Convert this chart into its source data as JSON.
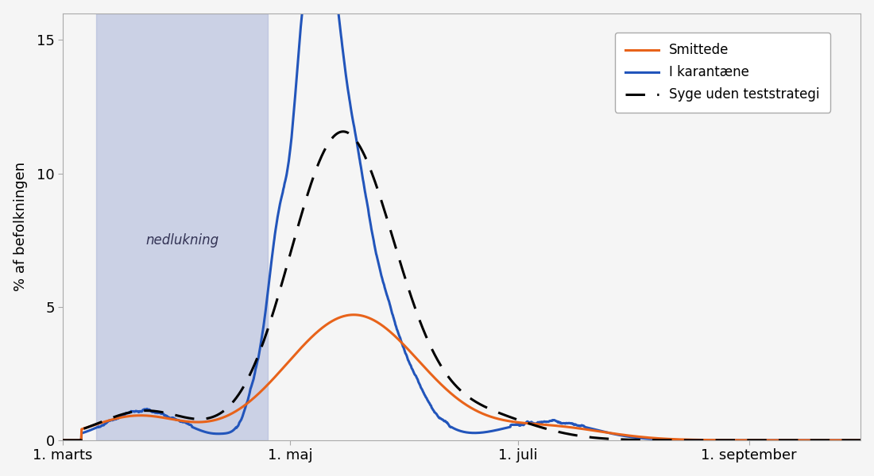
{
  "ylabel": "% af befolkningen",
  "xlabel_ticks": [
    "1. marts",
    "1. maj",
    "1. juli",
    "1. september"
  ],
  "xlim": [
    0,
    214
  ],
  "ylim": [
    0,
    16
  ],
  "yticks": [
    0,
    5,
    10,
    15
  ],
  "lockdown_start_day": 9,
  "lockdown_end_day": 55,
  "lockdown_color": "#aab4d8",
  "lockdown_alpha": 0.55,
  "nedlukning_label": "nedlukning",
  "smittede_color": "#e8631a",
  "karantaene_color": "#2255bb",
  "syge_color": "#000000",
  "legend_entries": [
    "Smittede",
    "I karantæne",
    "Syge uden teststrategi"
  ],
  "background_color": "#f5f5f5",
  "march1_day": 0,
  "maj1_day": 61,
  "juli1_day": 122,
  "september1_day": 184
}
